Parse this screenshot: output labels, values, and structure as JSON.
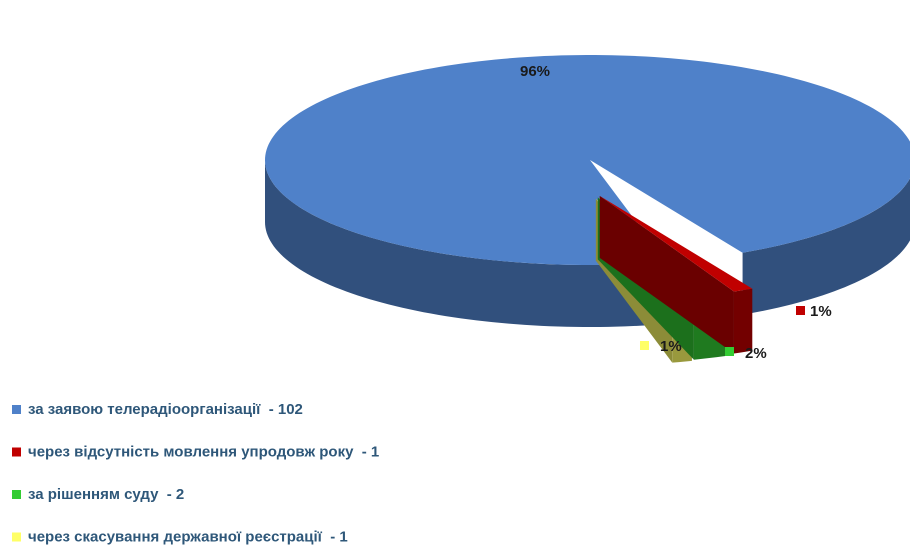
{
  "chart_data": {
    "type": "pie3d",
    "categories": [
      "за заявою телерадіоорганізації  - 102",
      "через відсутність мовлення упродовж року  - 1",
      "за рішенням суду  - 2",
      "через скасування державної реєстрації  - 1"
    ],
    "values": [
      96,
      1,
      2,
      1
    ],
    "value_labels": [
      "96%",
      "1%",
      "2%",
      "1%"
    ],
    "colors": [
      "#4f81c9",
      "#c00000",
      "#33cc33",
      "#ffff66"
    ]
  }
}
